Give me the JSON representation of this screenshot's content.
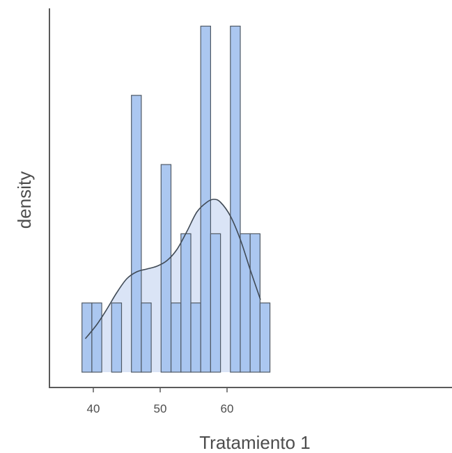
{
  "chart_data": {
    "type": "histogram",
    "xlabel": "Tratamiento 1",
    "ylabel": "density",
    "xlim": [
      37.5,
      66.4
    ],
    "x_ticks": [
      40,
      50,
      60
    ],
    "y_ticks_shown": false,
    "grid": false,
    "legend": "none",
    "bin_width": 1.48,
    "bins": [
      {
        "start": 38.3,
        "end": 39.78,
        "count": 1
      },
      {
        "start": 39.78,
        "end": 41.26,
        "count": 1
      },
      {
        "start": 41.26,
        "end": 42.74,
        "count": 0
      },
      {
        "start": 42.74,
        "end": 44.22,
        "count": 1
      },
      {
        "start": 44.22,
        "end": 45.7,
        "count": 0
      },
      {
        "start": 45.7,
        "end": 47.18,
        "count": 4
      },
      {
        "start": 47.18,
        "end": 48.66,
        "count": 1
      },
      {
        "start": 48.66,
        "end": 50.14,
        "count": 0
      },
      {
        "start": 50.14,
        "end": 51.62,
        "count": 3
      },
      {
        "start": 51.62,
        "end": 53.1,
        "count": 1
      },
      {
        "start": 53.1,
        "end": 54.58,
        "count": 2
      },
      {
        "start": 54.58,
        "end": 56.06,
        "count": 1
      },
      {
        "start": 56.06,
        "end": 57.54,
        "count": 5
      },
      {
        "start": 57.54,
        "end": 59.02,
        "count": 2
      },
      {
        "start": 59.02,
        "end": 60.5,
        "count": 0
      },
      {
        "start": 60.5,
        "end": 61.98,
        "count": 5
      },
      {
        "start": 61.98,
        "end": 63.46,
        "count": 2
      },
      {
        "start": 63.46,
        "end": 64.94,
        "count": 2
      },
      {
        "start": 64.94,
        "end": 66.42,
        "count": 1
      }
    ],
    "density_curve": {
      "x": [
        38.8,
        40.5,
        42.0,
        43.5,
        45.0,
        46.5,
        48.0,
        49.5,
        51.0,
        52.5,
        54.0,
        55.5,
        57.0,
        58.0,
        59.0,
        60.5,
        62.0,
        63.5,
        65.0
      ],
      "y": [
        0.48,
        0.68,
        0.9,
        1.14,
        1.34,
        1.44,
        1.48,
        1.52,
        1.6,
        1.76,
        2.02,
        2.3,
        2.44,
        2.48,
        2.44,
        2.24,
        1.9,
        1.46,
        1.04
      ]
    },
    "colors": {
      "bar_fill": "#a6c4ef",
      "density_fill": "#dae4f6",
      "density_line": "#404a55",
      "axis": "#5a5a5a"
    }
  }
}
